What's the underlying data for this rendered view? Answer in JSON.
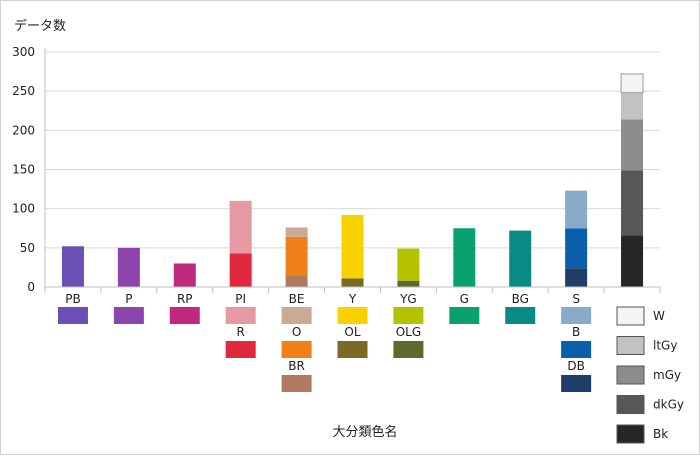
{
  "chart_data": {
    "type": "bar",
    "stacked": true,
    "ylabel": "データ数",
    "xlabel": "大分類色名",
    "ylim": [
      0,
      300
    ],
    "yticks": [
      0,
      50,
      100,
      150,
      200,
      250,
      300
    ],
    "categories": [
      "PB",
      "P",
      "RP",
      "PI",
      "BE",
      "Y",
      "YG",
      "G",
      "BG",
      "S",
      ""
    ],
    "stacks": [
      [
        {
          "name": "PB",
          "value": 52,
          "color": "#6a4fb5"
        }
      ],
      [
        {
          "name": "P",
          "value": 50,
          "color": "#8e44ad"
        }
      ],
      [
        {
          "name": "RP",
          "value": 30,
          "color": "#c02a7e"
        }
      ],
      [
        {
          "name": "R",
          "value": 43,
          "color": "#e0283f"
        },
        {
          "name": "PI",
          "value": 67,
          "color": "#e59aa3"
        }
      ],
      [
        {
          "name": "BR",
          "value": 14,
          "color": "#b07a62"
        },
        {
          "name": "O",
          "value": 50,
          "color": "#f28019"
        },
        {
          "name": "BE",
          "value": 12,
          "color": "#c9ab95"
        }
      ],
      [
        {
          "name": "OL",
          "value": 11,
          "color": "#7a6a24"
        },
        {
          "name": "Y",
          "value": 81,
          "color": "#f7d200"
        }
      ],
      [
        {
          "name": "OLG",
          "value": 8,
          "color": "#5d6a2d"
        },
        {
          "name": "YG",
          "value": 41,
          "color": "#b5c200"
        }
      ],
      [
        {
          "name": "G",
          "value": 75,
          "color": "#0aa170"
        }
      ],
      [
        {
          "name": "BG",
          "value": 72,
          "color": "#0a8a84"
        }
      ],
      [
        {
          "name": "DB",
          "value": 24,
          "color": "#1f3f6a"
        },
        {
          "name": "B",
          "value": 51,
          "color": "#0a5fad"
        },
        {
          "name": "S",
          "value": 48,
          "color": "#8aaacc"
        }
      ],
      [
        {
          "name": "Bk",
          "value": 66,
          "color": "#262626"
        },
        {
          "name": "dkGy",
          "value": 83,
          "color": "#575757"
        },
        {
          "name": "mGy",
          "value": 65,
          "color": "#8c8c8c"
        },
        {
          "name": "ltGy",
          "value": 34,
          "color": "#c2c2c2"
        },
        {
          "name": "W",
          "value": 24,
          "color": "#f4f4f4"
        }
      ]
    ],
    "swatch_table": [
      [
        {
          "name": "PB",
          "color": "#6a4fb5"
        }
      ],
      [
        {
          "name": "P",
          "color": "#8e44ad"
        }
      ],
      [
        {
          "name": "RP",
          "color": "#c02a7e"
        }
      ],
      [
        {
          "name": "PI",
          "color": "#e59aa3"
        },
        {
          "name": "R",
          "color": "#e0283f"
        }
      ],
      [
        {
          "name": "BE",
          "color": "#c9ab95"
        },
        {
          "name": "O",
          "color": "#f28019"
        },
        {
          "name": "BR",
          "color": "#b07a62"
        }
      ],
      [
        {
          "name": "Y",
          "color": "#f7d200"
        },
        {
          "name": "OL",
          "color": "#7a6a24"
        }
      ],
      [
        {
          "name": "YG",
          "color": "#b5c200"
        },
        {
          "name": "OLG",
          "color": "#5d6a2d"
        }
      ],
      [
        {
          "name": "G",
          "color": "#0aa170"
        }
      ],
      [
        {
          "name": "BG",
          "color": "#0a8a84"
        }
      ],
      [
        {
          "name": "S",
          "color": "#8aaacc"
        },
        {
          "name": "B",
          "color": "#0a5fad"
        },
        {
          "name": "DB",
          "color": "#1f3f6a"
        }
      ]
    ],
    "achromatic_legend": [
      {
        "name": "W",
        "color": "#f4f4f4"
      },
      {
        "name": "ltGy",
        "color": "#c2c2c2"
      },
      {
        "name": "mGy",
        "color": "#8c8c8c"
      },
      {
        "name": "dkGy",
        "color": "#575757"
      },
      {
        "name": "Bk",
        "color": "#262626"
      }
    ],
    "grid": true,
    "legend_position": "right"
  }
}
